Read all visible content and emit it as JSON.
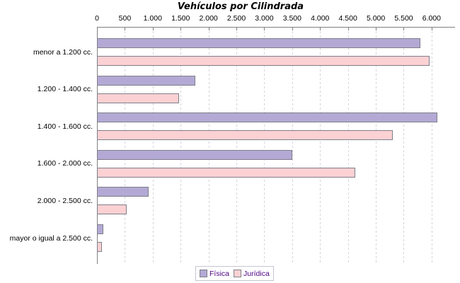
{
  "chart_data": {
    "type": "bar",
    "orientation": "horizontal",
    "title": "Vehículos por Cilindrada",
    "xlabel": "",
    "ylabel": "",
    "categories": [
      "menor a 1.200 cc.",
      "1.200 - 1.400 cc.",
      "1.400 - 1.600 cc.",
      "1.600 - 2.000 cc.",
      "2.000 - 2.500 cc.",
      "mayor o igual a 2.500 cc."
    ],
    "series": [
      {
        "name": "Física",
        "color": "#b3a9d4",
        "values": [
          5800,
          1760,
          6100,
          3500,
          920,
          120
        ]
      },
      {
        "name": "Jurídica",
        "color": "#fbd1d3",
        "values": [
          5960,
          1470,
          5300,
          4630,
          530,
          85
        ]
      }
    ],
    "xlim": [
      0,
      6420
    ],
    "xtick_values": [
      0,
      500,
      1000,
      1500,
      2000,
      2500,
      3000,
      3500,
      4000,
      4500,
      5000,
      5500,
      6000
    ],
    "xtick_labels": [
      "0",
      "500",
      "1.000",
      "1.500",
      "2.000",
      "2.500",
      "3.000",
      "3.500",
      "4.000",
      "4.500",
      "5.000",
      "5.500",
      "6.000"
    ],
    "grid": "vertical-dashed",
    "axis_position": "top",
    "legend_position": "bottom-center"
  },
  "colors": {
    "fisica_fill": "#b3a9d4",
    "juridica_fill": "#fbd1d3",
    "bar_border": "#7f7f8a",
    "axis": "#808080",
    "gridline": "#d4d4dc",
    "legend_border": "#c6c6d2",
    "legend_text": "#4b0082",
    "background": "#ffffff"
  }
}
